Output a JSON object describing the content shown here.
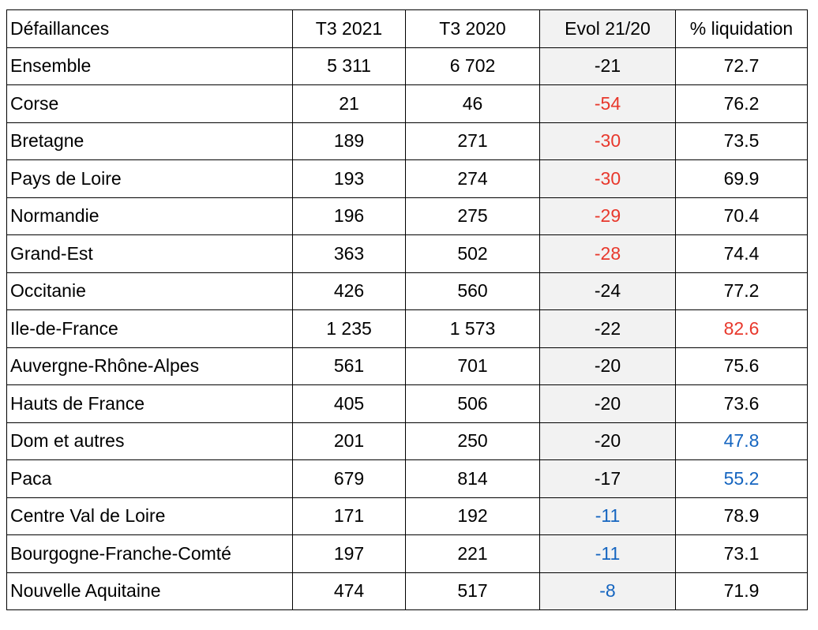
{
  "table": {
    "header": [
      "Défaillances",
      "T3 2021",
      "T3 2020",
      "Evol 21/20",
      "% liquidation"
    ],
    "rows": [
      [
        "Ensemble",
        "5 311",
        "6 702",
        "-21",
        "72.7"
      ],
      [
        "Corse",
        "21",
        "46",
        "-54",
        "76.2"
      ],
      [
        "Bretagne",
        "189",
        "271",
        "-30",
        "73.5"
      ],
      [
        "Pays de Loire",
        "193",
        "274",
        "-30",
        "69.9"
      ],
      [
        "Normandie",
        "196",
        "275",
        "-29",
        "70.4"
      ],
      [
        "Grand-Est",
        "363",
        "502",
        "-28",
        "74.4"
      ],
      [
        "Occitanie",
        "426",
        "560",
        "-24",
        "77.2"
      ],
      [
        "Ile-de-France",
        "1 235",
        "1 573",
        "-22",
        "82.6"
      ],
      [
        "Auvergne-Rhône-Alpes",
        "561",
        "701",
        "-20",
        "75.6"
      ],
      [
        "Hauts de France",
        "405",
        "506",
        "-20",
        "73.6"
      ],
      [
        "Dom et autres",
        "201",
        "250",
        "-20",
        "47.8"
      ],
      [
        "Paca",
        "679",
        "814",
        "-17",
        "55.2"
      ],
      [
        "Centre Val de Loire",
        "171",
        "192",
        "-11",
        "78.9"
      ],
      [
        "Bourgogne-Franche-Comté",
        "197",
        "221",
        "-11",
        "73.1"
      ],
      [
        "Nouvelle Aquitaine",
        "474",
        "517",
        "-8",
        "71.9"
      ]
    ]
  }
}
